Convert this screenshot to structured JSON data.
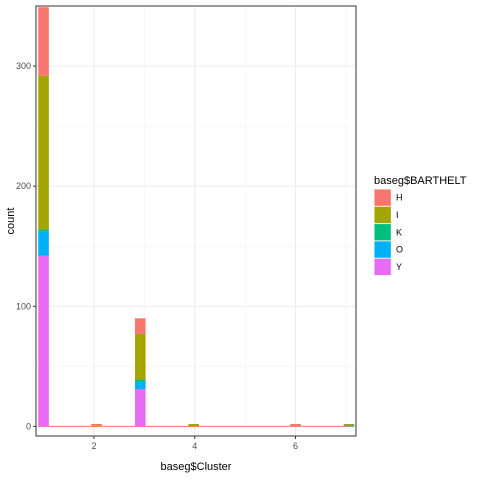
{
  "chart_data": {
    "type": "bar",
    "stacked": true,
    "xlabel": "baseg$Cluster",
    "ylabel": "count",
    "xlim": [
      0.85,
      7.2
    ],
    "ylim": [
      -8,
      350
    ],
    "x_ticks": [
      2,
      4,
      6
    ],
    "y_ticks": [
      0,
      100,
      200,
      300
    ],
    "x_minor_ticks": [
      1,
      3,
      5,
      7
    ],
    "y_minor_ticks": [
      50,
      150,
      250
    ],
    "bin_width": 0.21,
    "grid": true,
    "legend": {
      "title": "baseg$BARTHELT",
      "position": "right"
    },
    "series": [
      {
        "name": "H",
        "color": "#F8766D"
      },
      {
        "name": "I",
        "color": "#A3A500"
      },
      {
        "name": "K",
        "color": "#00BF7D"
      },
      {
        "name": "O",
        "color": "#00B0F6"
      },
      {
        "name": "Y",
        "color": "#E76BF3"
      }
    ],
    "bins": [
      {
        "x": 1.0,
        "values": {
          "Y": 142,
          "O": 20,
          "K": 2,
          "I": 128,
          "H": 57
        }
      },
      {
        "x": 2.05,
        "values": {
          "Y": 0,
          "O": 0,
          "K": 0,
          "I": 1,
          "H": 1
        }
      },
      {
        "x": 2.92,
        "values": {
          "Y": 31,
          "O": 6,
          "K": 2,
          "I": 38,
          "H": 13
        }
      },
      {
        "x": 3.98,
        "values": {
          "Y": 0,
          "O": 0,
          "K": 0,
          "I": 2,
          "H": 0
        }
      },
      {
        "x": 6.0,
        "values": {
          "Y": 0,
          "O": 0,
          "K": 0,
          "I": 0,
          "H": 2
        }
      },
      {
        "x": 7.06,
        "values": {
          "Y": 0,
          "O": 0,
          "K": 1,
          "I": 1,
          "H": 0
        }
      }
    ]
  }
}
